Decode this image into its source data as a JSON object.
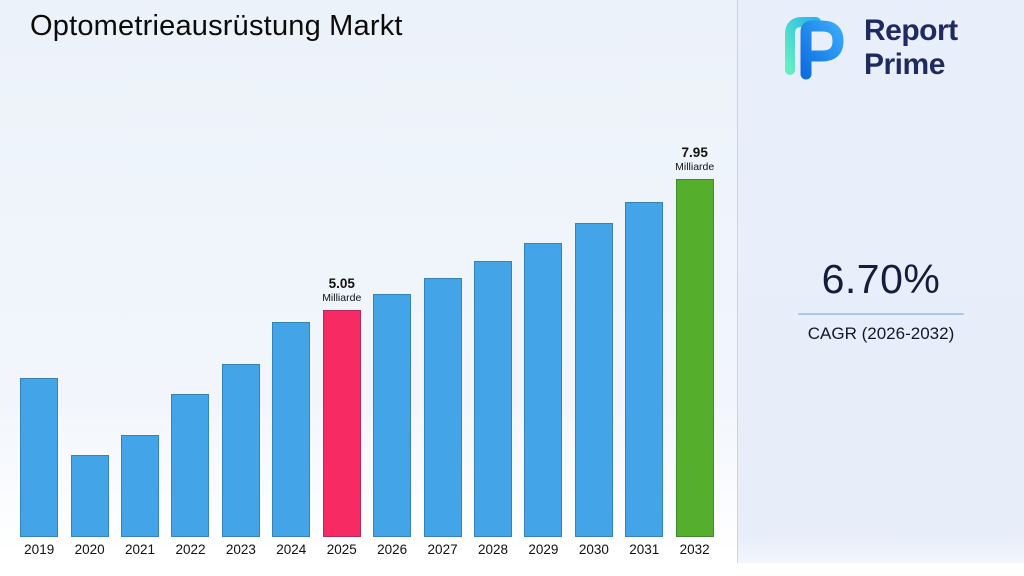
{
  "page": {
    "title": "Optometrieausrüstung Markt"
  },
  "logo": {
    "word1": "Report",
    "word2": "Prime"
  },
  "cagr": {
    "value": "6.70%",
    "label": "CAGR (2026-2032)"
  },
  "chart_data": {
    "type": "bar",
    "title": "Optometrieausrüstung Markt",
    "unit": "Milliarde",
    "categories": [
      "2019",
      "2020",
      "2021",
      "2022",
      "2023",
      "2024",
      "2025",
      "2026",
      "2027",
      "2028",
      "2029",
      "2030",
      "2031",
      "2032"
    ],
    "values": [
      3.54,
      1.82,
      2.27,
      3.18,
      3.85,
      4.78,
      5.05,
      5.39,
      5.75,
      6.13,
      6.54,
      6.98,
      7.45,
      7.95
    ],
    "ylim": [
      0,
      9
    ],
    "xlabel": "",
    "ylabel": "",
    "grid": false,
    "legend": false,
    "bar_color_default": "#44a4e8",
    "bar_color_highlights": {
      "2025": "#f72a64",
      "2032": "#55ae2c"
    },
    "annotations": [
      {
        "category": "2025",
        "value_label": "5.05",
        "unit_label": "Milliarde"
      },
      {
        "category": "2032",
        "value_label": "7.95",
        "unit_label": "Milliarde"
      }
    ]
  }
}
